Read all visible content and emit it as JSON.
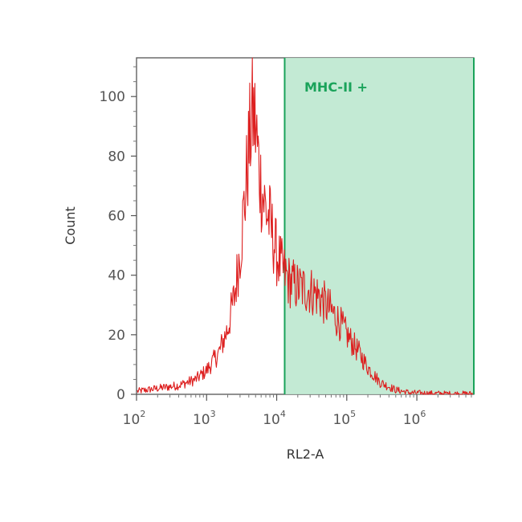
{
  "chart_data": {
    "type": "area",
    "title": "",
    "xlabel": "RL2-A",
    "ylabel": "Count",
    "x_scale": "log10",
    "xlim": [
      100,
      6500000
    ],
    "ylim": [
      0,
      113
    ],
    "x_ticks": [
      {
        "value": 100,
        "base": "10",
        "exp": "2"
      },
      {
        "value": 1000,
        "base": "10",
        "exp": "3"
      },
      {
        "value": 10000,
        "base": "10",
        "exp": "4"
      },
      {
        "value": 100000,
        "base": "10",
        "exp": "5"
      },
      {
        "value": 1000000,
        "base": "10",
        "exp": "6"
      }
    ],
    "y_ticks": [
      0,
      20,
      40,
      60,
      80,
      100
    ],
    "grid": false,
    "series": [
      {
        "color": "#dd1f1f",
        "x": [
          100,
          200,
          400,
          700,
          1000,
          1500,
          2000,
          2500,
          3000,
          3500,
          4000,
          4500,
          5000,
          5500,
          6000,
          7000,
          8000,
          9000,
          10000,
          12000,
          15000,
          20000,
          30000,
          40000,
          50000,
          60000,
          80000,
          100000,
          150000,
          200000,
          300000,
          500000,
          800000,
          1500000,
          3000000,
          6000000
        ],
        "y": [
          1,
          2,
          3,
          5,
          8,
          14,
          22,
          33,
          48,
          65,
          82,
          95,
          90,
          78,
          70,
          62,
          58,
          52,
          47,
          42,
          38,
          36,
          35,
          33,
          30,
          28,
          24,
          20,
          14,
          9,
          4,
          1.5,
          0.5,
          0.3,
          0.2,
          0.2
        ]
      }
    ],
    "gate": {
      "label": "MHC-II +",
      "x_range": [
        13000,
        6500000
      ],
      "fill": "#bde8cf",
      "stroke": "#1aa35a"
    }
  }
}
